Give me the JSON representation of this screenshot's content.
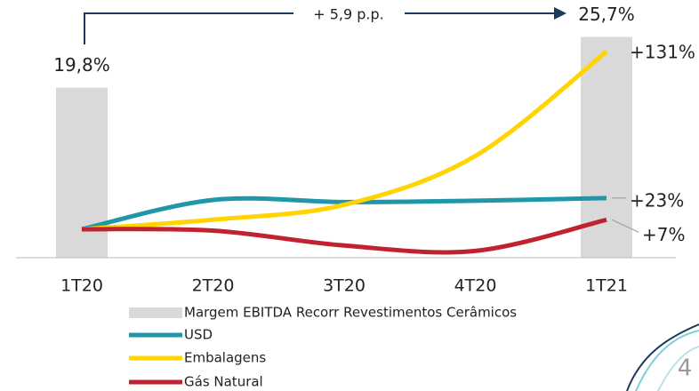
{
  "chart_data": {
    "type": "combo",
    "categories": [
      "1T20",
      "2T20",
      "3T20",
      "4T20",
      "1T21"
    ],
    "bars": {
      "name": "Margem EBITDA Recorr Revestimentos Cerâmicos",
      "color": "#d9d9d9",
      "values": [
        19.8,
        null,
        null,
        null,
        25.7
      ],
      "value_labels": [
        "19,8%",
        null,
        null,
        null,
        "25,7%"
      ]
    },
    "series": [
      {
        "name": "USD",
        "color": "#1f97a8",
        "axis": "y2",
        "values": [
          0,
          21.6,
          20,
          21,
          23
        ],
        "value_labels": [
          null,
          null,
          null,
          null,
          "+23%"
        ]
      },
      {
        "name": "Embalagens",
        "color": "#ffd400",
        "axis": "y2",
        "values": [
          0,
          7,
          18,
          54,
          131
        ],
        "value_labels": [
          null,
          null,
          null,
          null,
          "+131%"
        ]
      },
      {
        "name": "Gás Natural",
        "color": "#c0222f",
        "axis": "y2",
        "values": [
          0,
          -1,
          -12,
          -16,
          7
        ],
        "value_labels": [
          null,
          null,
          null,
          null,
          "+7%"
        ]
      }
    ],
    "ylim": [
      0,
      30
    ],
    "y2lim": [
      -21,
      169
    ],
    "annotation": "+ 5,9 p.p."
  },
  "page_number": "4"
}
